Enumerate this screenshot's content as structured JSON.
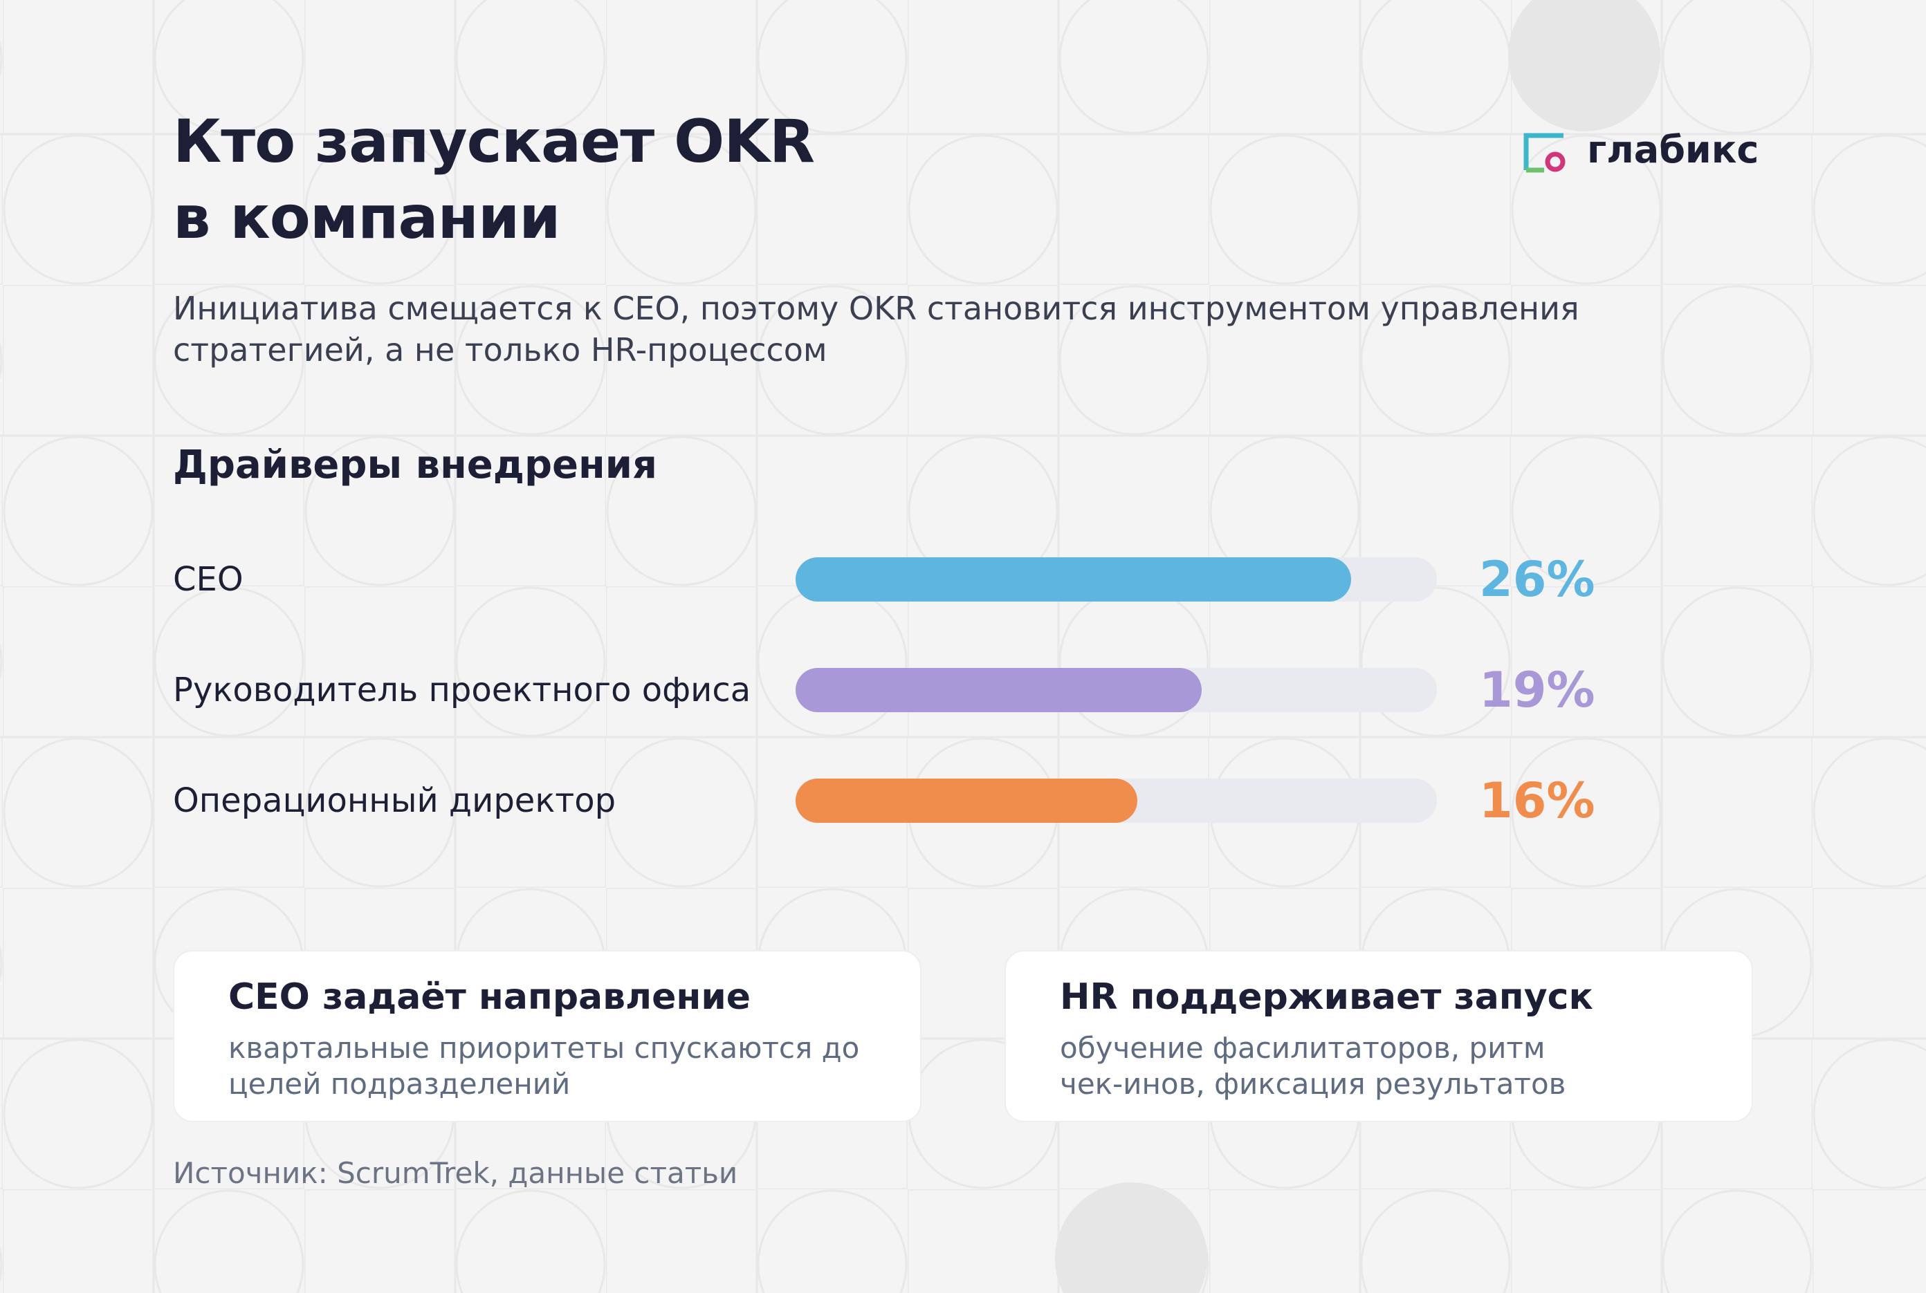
{
  "logo": "глабикс",
  "chart_data": {
    "type": "bar",
    "orientation": "horizontal",
    "title": "Кто запускает OKR\nв компании",
    "subtitle": "Инициатива смещается к CEO, поэтому OKR становится инструментом управления\nстратегией, а не только HR-процессом",
    "section_title": "Драйверы внедрения",
    "categories": [
      "CEO",
      "Руководитель проектного офиса",
      "Операционный директор"
    ],
    "values": [
      26,
      19,
      16
    ],
    "value_labels": [
      "26%",
      "19%",
      "16%"
    ],
    "colors": [
      "#5eb5e0",
      "#a998d8",
      "#f08c4c"
    ],
    "xlim": [
      0,
      30
    ]
  },
  "cards": [
    {
      "title": "CEO задаёт направление",
      "text": "квартальные приоритеты спускаются до\nцелей подразделений"
    },
    {
      "title": "HR поддерживает запуск",
      "text": "обучение фасилитаторов, ритм\nчек-инов, фиксация результатов"
    }
  ],
  "source": "Источник: ScrumTrek, данные статьи"
}
